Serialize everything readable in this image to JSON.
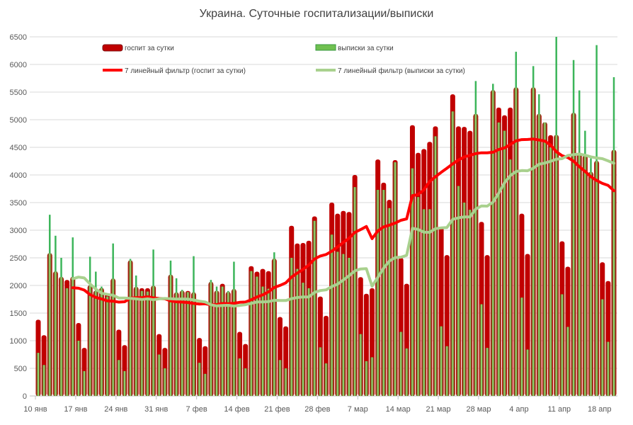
{
  "chart_data": {
    "type": "bar",
    "title": "Украина. Суточные госпитализации/выписки",
    "ylim": [
      0,
      6500
    ],
    "y_ticks": [
      0,
      500,
      1000,
      1500,
      2000,
      2500,
      3000,
      3500,
      4000,
      4500,
      5000,
      5500,
      6000,
      6500
    ],
    "x_tick_labels": [
      "10 янв",
      "17 янв",
      "24 янв",
      "31 янв",
      "7 фев",
      "14 фев",
      "21 фев",
      "28 фев",
      "7 мар",
      "14 мар",
      "21 мар",
      "28 мар",
      "4 апр",
      "11 апр",
      "18 апр"
    ],
    "grid": true,
    "legend_placement": "top",
    "series": [
      {
        "name": "госпит за сутки",
        "kind": "bar",
        "color": "#c00000",
        "values": [
          1380,
          1100,
          2580,
          2250,
          2150,
          2100,
          2150,
          1320,
          870,
          2000,
          1900,
          1950,
          1850,
          2120,
          1200,
          920,
          2450,
          1970,
          1950,
          1950,
          1990,
          1120,
          870,
          2190,
          1870,
          1900,
          1900,
          1870,
          1050,
          900,
          2060,
          1900,
          2030,
          1880,
          1930,
          1160,
          940,
          2350,
          2250,
          2300,
          2260,
          2480,
          1430,
          1260,
          3080,
          2760,
          2770,
          2810,
          3250,
          1800,
          1450,
          3500,
          3300,
          3350,
          3330,
          4000,
          2150,
          1850,
          1950,
          4280,
          3860,
          3550,
          4270,
          2500,
          2030,
          4900,
          4400,
          4470,
          4600,
          4880,
          3050,
          2550,
          5460,
          4880,
          4870,
          4800,
          5100,
          3150,
          2550,
          5530,
          5220,
          5080,
          5220,
          5580,
          3300,
          2570,
          5580,
          5100,
          4950,
          4720,
          4720,
          2800,
          2340,
          5120,
          4400,
          4350,
          4050,
          4250,
          2420,
          2080,
          4450
        ]
      },
      {
        "name": "выписки за сутки",
        "kind": "bar",
        "color": "#3cb55a",
        "values": [
          780,
          560,
          3280,
          2900,
          2500,
          1950,
          2870,
          1000,
          450,
          2520,
          2250,
          1980,
          1800,
          2760,
          650,
          450,
          2480,
          2180,
          1900,
          1890,
          2650,
          750,
          500,
          2450,
          2130,
          1920,
          1880,
          2530,
          600,
          400,
          2100,
          1980,
          1980,
          1900,
          2430,
          680,
          500,
          2260,
          2160,
          1980,
          1940,
          2600,
          650,
          500,
          2500,
          2300,
          2050,
          1950,
          3170,
          880,
          590,
          2920,
          2610,
          2570,
          2500,
          3780,
          1120,
          630,
          700,
          3730,
          3730,
          3400,
          4230,
          1160,
          860,
          4120,
          3600,
          3380,
          3380,
          4700,
          1260,
          900,
          5150,
          3800,
          3500,
          3370,
          5700,
          1660,
          870,
          5650,
          4950,
          4800,
          4280,
          6230,
          1780,
          840,
          5970,
          5460,
          4950,
          4500,
          6500,
          1840,
          1250,
          6080,
          5530,
          4800,
          4300,
          6350,
          1750,
          980,
          5770
        ]
      },
      {
        "name": "7 линейный фильтр (госпит за сутки)",
        "kind": "line",
        "color": "#ff0000"
      },
      {
        "name": "7 линейный фильтр (выписки за сутки)",
        "kind": "line",
        "color": "#a9d18e"
      }
    ]
  }
}
